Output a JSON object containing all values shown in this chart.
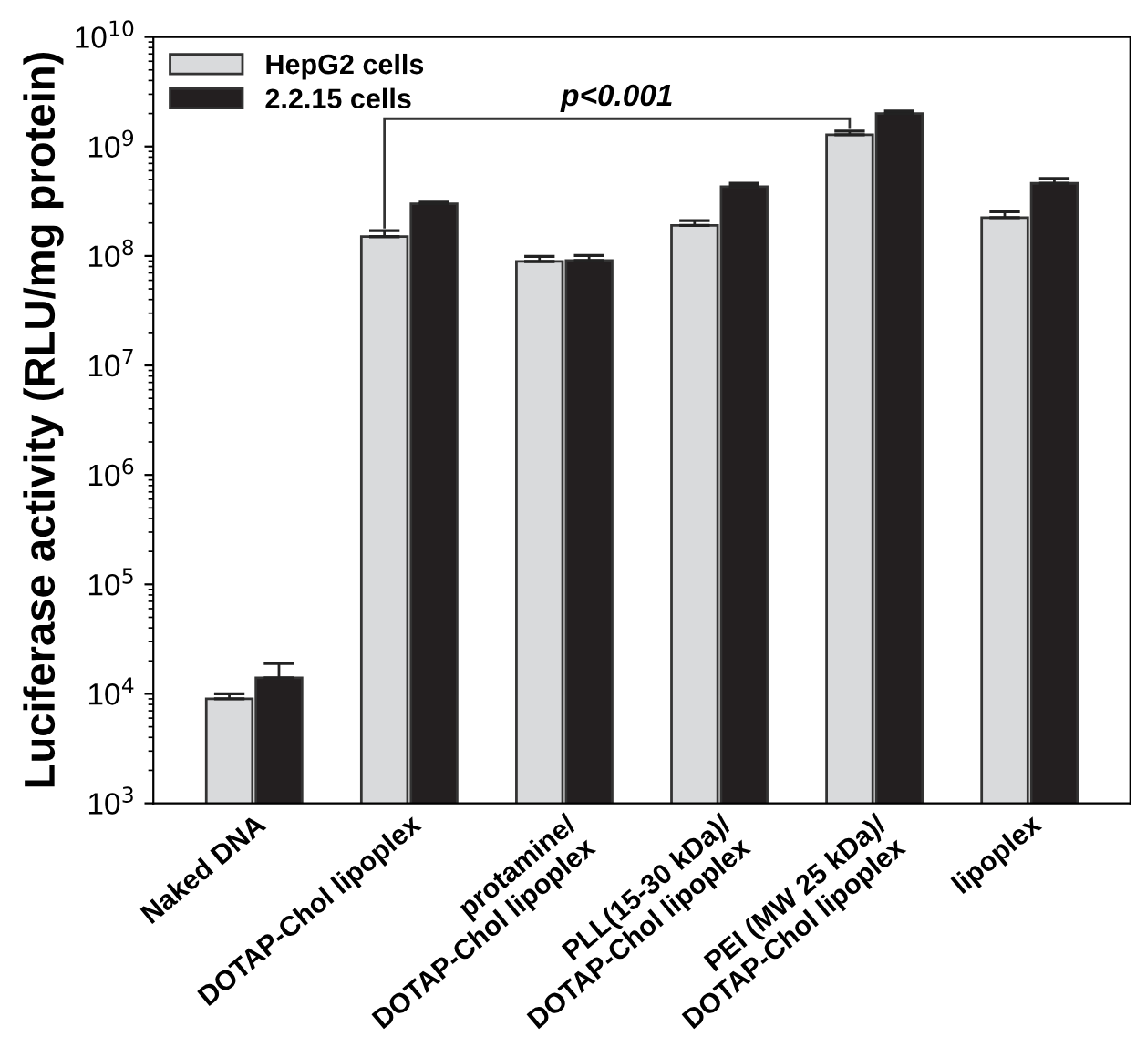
{
  "chart_data": {
    "type": "bar",
    "ylabel": "Luciferase activity (RLU/mg protein)",
    "categories": [
      "Naked DNA",
      "DOTAP-Chol lipoplex",
      "protamine/\nDOTAP-Chol lipoplex",
      "PLL(15-30 kDa)/\nDOTAP-Chol lipoplex",
      "PEI (MW 25 kDa)/\nDOTAP-Chol lipoplex",
      "lipoplex"
    ],
    "series": [
      {
        "name": "HepG2 cells",
        "color": "#d9dadc",
        "values": [
          9000,
          150000000,
          89000000,
          190000000,
          1280000000,
          224000000
        ],
        "errors": [
          1000,
          20000000,
          10000000,
          20000000,
          100000000,
          30000000
        ]
      },
      {
        "name": "2.2.15 cells",
        "color": "#231f20",
        "values": [
          14000,
          300000000,
          91000000,
          430000000,
          2000000000,
          460000000
        ],
        "errors": [
          5000,
          10000000,
          10000000,
          30000000,
          100000000,
          50000000
        ]
      }
    ],
    "log": "y",
    "ylim": [
      1000,
      10000000000
    ],
    "yticks": [
      {
        "value": 1000,
        "label": "10$^{3}$"
      },
      {
        "value": 10000,
        "label": "10$^{4}$"
      },
      {
        "value": 100000,
        "label": "10$^{5}$"
      },
      {
        "value": 1000000,
        "label": "10$^{6}$"
      },
      {
        "value": 10000000,
        "label": "10$^{7}$"
      },
      {
        "value": 100000000,
        "label": "10$^{8}$"
      },
      {
        "value": 1000000000,
        "label": "10$^{9}$"
      },
      {
        "value": 10000000000,
        "label": "10$^{10}$"
      }
    ],
    "annotations": [
      "p<0.001"
    ],
    "legend": "top left",
    "grid": false
  }
}
